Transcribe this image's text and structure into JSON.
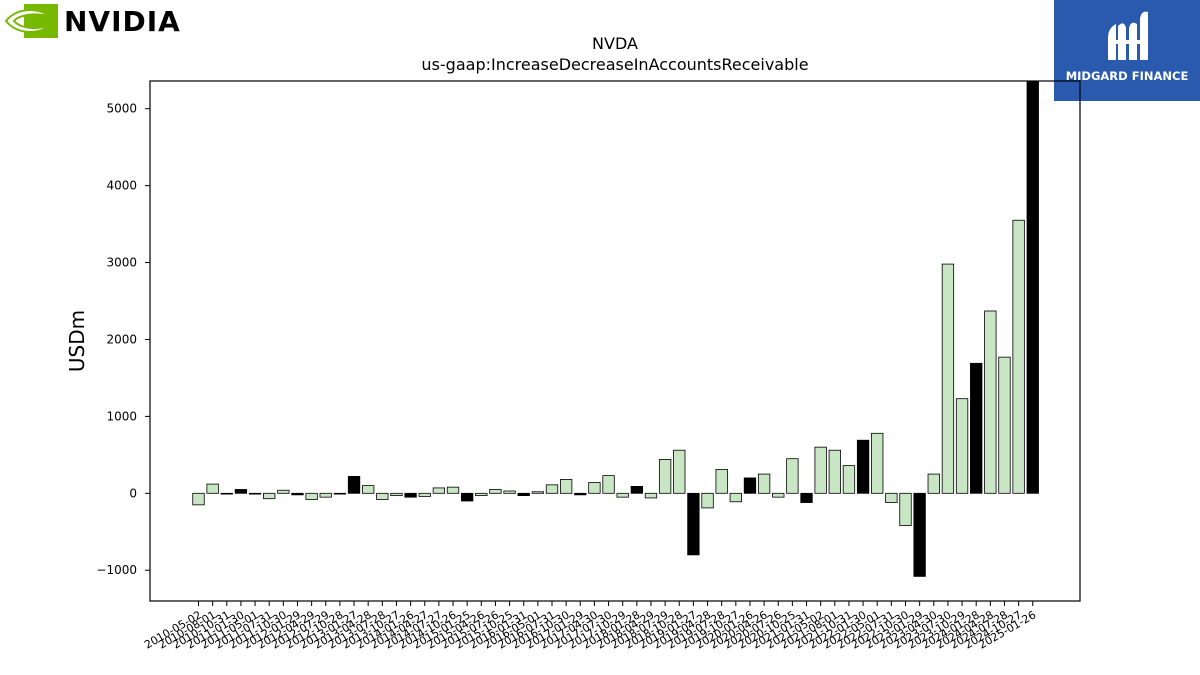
{
  "branding": {
    "left_logo_text": "NVIDIA",
    "right_logo_text": "MIDGARD FINANCE",
    "left_logo_color": "#76b900",
    "right_logo_color": "#2a5aae"
  },
  "chart_data": {
    "type": "bar",
    "title": "NVDA",
    "subtitle": "us-gaap:IncreaseDecreaseInAccountsReceivable",
    "ylabel": "USDm",
    "xlabel": "",
    "ylim": [
      -1400,
      5360
    ],
    "yticks": [
      -1000,
      0,
      1000,
      2000,
      3000,
      4000,
      5000
    ],
    "grid": false,
    "colors": {
      "quarter": "#c8e6c4",
      "annual": "#000000",
      "edge": "#000000"
    },
    "categories": [
      "2010-05-02",
      "2010-08-01",
      "2010-10-31",
      "2011-01-30",
      "2011-05-01",
      "2011-07-31",
      "2011-10-30",
      "2012-01-29",
      "2012-04-29",
      "2012-07-29",
      "2012-10-28",
      "2013-01-27",
      "2013-04-28",
      "2013-07-28",
      "2013-10-27",
      "2014-01-26",
      "2014-04-27",
      "2014-07-27",
      "2014-10-26",
      "2015-01-25",
      "2015-04-26",
      "2015-07-26",
      "2015-10-25",
      "2016-01-31",
      "2016-05-01",
      "2016-07-31",
      "2016-10-30",
      "2017-01-29",
      "2017-04-30",
      "2017-07-30",
      "2017-10-29",
      "2018-01-28",
      "2018-04-29",
      "2018-07-29",
      "2018-10-28",
      "2019-01-27",
      "2019-04-28",
      "2019-07-28",
      "2019-10-27",
      "2020-01-26",
      "2020-04-26",
      "2020-07-26",
      "2020-10-25",
      "2021-01-31",
      "2021-05-02",
      "2021-08-01",
      "2021-10-31",
      "2022-01-30",
      "2022-05-01",
      "2022-07-31",
      "2022-10-30",
      "2023-01-29",
      "2023-04-30",
      "2023-07-30",
      "2023-10-29",
      "2024-01-28",
      "2024-04-28",
      "2024-07-28",
      "2024-10-27",
      "2025-01-26"
    ],
    "values": [
      -150,
      120,
      -10,
      50,
      -5,
      -70,
      40,
      -20,
      -80,
      -50,
      -10,
      220,
      100,
      -80,
      -30,
      -50,
      -40,
      70,
      80,
      -100,
      -30,
      50,
      30,
      -30,
      20,
      110,
      180,
      -20,
      140,
      230,
      -50,
      90,
      -60,
      440,
      560,
      -800,
      -190,
      310,
      -110,
      200,
      250,
      -50,
      450,
      -120,
      600,
      560,
      360,
      690,
      780,
      -120,
      -420,
      -1080,
      250,
      2980,
      1230,
      1690,
      2370,
      1770,
      3550,
      5380
    ],
    "bar_kind": [
      "q",
      "q",
      "q",
      "a",
      "q",
      "q",
      "q",
      "a",
      "q",
      "q",
      "q",
      "a",
      "q",
      "q",
      "q",
      "a",
      "q",
      "q",
      "q",
      "a",
      "q",
      "q",
      "q",
      "a",
      "q",
      "q",
      "q",
      "a",
      "q",
      "q",
      "q",
      "a",
      "q",
      "q",
      "q",
      "a",
      "q",
      "q",
      "q",
      "a",
      "q",
      "q",
      "q",
      "a",
      "q",
      "q",
      "q",
      "a",
      "q",
      "q",
      "q",
      "a",
      "q",
      "q",
      "q",
      "a",
      "q",
      "q",
      "q",
      "a"
    ]
  }
}
